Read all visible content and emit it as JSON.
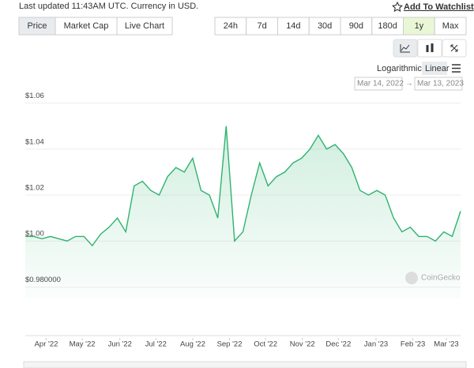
{
  "header": {
    "updated": "Last updated 11:43AM UTC. Currency in USD.",
    "watchlist": "Add To Watchlist"
  },
  "tabs": [
    "Price",
    "Market Cap",
    "Live Chart"
  ],
  "ranges": [
    "24h",
    "7d",
    "14d",
    "30d",
    "90d",
    "180d",
    "1y",
    "Max"
  ],
  "scale_options": [
    "Logarithmic",
    "Linear"
  ],
  "date_from": "Mar 14, 2022",
  "date_to": "Mar 13, 2023",
  "watermark": "CoinGecko",
  "chart_data": {
    "type": "line",
    "color": "#2fb36f",
    "values": [
      1.002,
      1.002,
      1.001,
      1.002,
      1.001,
      1.0,
      1.002,
      1.002,
      0.998,
      1.003,
      1.006,
      1.01,
      1.004,
      1.024,
      1.026,
      1.022,
      1.02,
      1.028,
      1.032,
      1.03,
      1.036,
      1.022,
      1.02,
      1.01,
      1.05,
      1.0,
      1.004,
      1.02,
      1.034,
      1.024,
      1.028,
      1.03,
      1.034,
      1.036,
      1.04,
      1.046,
      1.04,
      1.042,
      1.038,
      1.032,
      1.022,
      1.02,
      1.022,
      1.02,
      1.01,
      1.004,
      1.006,
      1.002,
      1.002,
      1.0,
      1.004,
      1.002,
      1.013
    ],
    "xlim": [
      0,
      52
    ],
    "xticks": [
      {
        "value": 2.5,
        "label": "Apr '22"
      },
      {
        "value": 6.8,
        "label": "May '22"
      },
      {
        "value": 11.3,
        "label": "Jun '22"
      },
      {
        "value": 15.6,
        "label": "Jul '22"
      },
      {
        "value": 20,
        "label": "Aug '22"
      },
      {
        "value": 24.4,
        "label": "Sep '22"
      },
      {
        "value": 28.7,
        "label": "Oct '22"
      },
      {
        "value": 33.1,
        "label": "Nov '22"
      },
      {
        "value": 37.4,
        "label": "Dec '22"
      },
      {
        "value": 41.9,
        "label": "Jan '23"
      },
      {
        "value": 46.3,
        "label": "Feb '23"
      },
      {
        "value": 50.3,
        "label": "Mar '23"
      }
    ],
    "ylim": [
      0.975,
      1.065
    ],
    "yticks": [
      {
        "value": 0.98,
        "label": "$0.980000"
      },
      {
        "value": 1.0,
        "label": "$1.00"
      },
      {
        "value": 1.02,
        "label": "$1.02"
      },
      {
        "value": 1.04,
        "label": "$1.04"
      },
      {
        "value": 1.06,
        "label": "$1.06"
      }
    ],
    "grid": true
  }
}
